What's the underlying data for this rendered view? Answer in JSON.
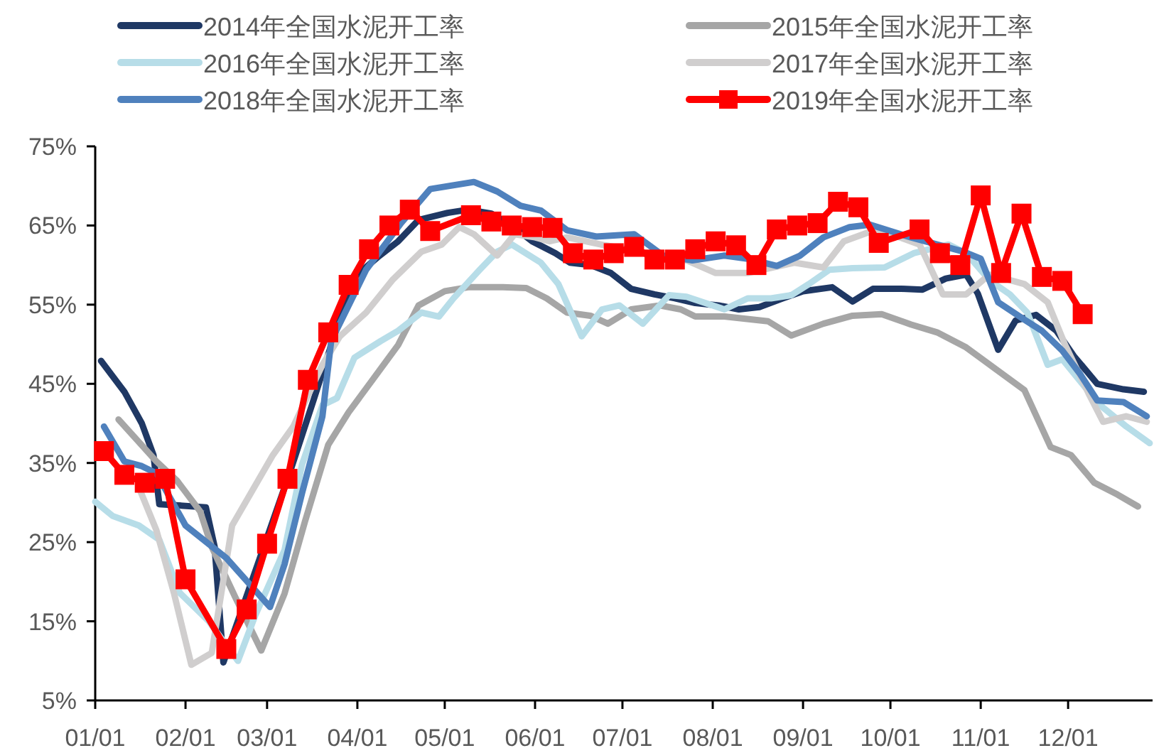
{
  "chart_data": {
    "type": "line",
    "legend": "top",
    "grid": false,
    "marker": "none",
    "line_style": "solid",
    "xlim": [
      "--01-01",
      "--12-30"
    ],
    "xticks": [
      {
        "value": "--01-01",
        "label": "01/01"
      },
      {
        "value": "--02-01",
        "label": "02/01"
      },
      {
        "value": "--03-01",
        "label": "03/01"
      },
      {
        "value": "--04-01",
        "label": "04/01"
      },
      {
        "value": "--05-01",
        "label": "05/01"
      },
      {
        "value": "--06-01",
        "label": "06/01"
      },
      {
        "value": "--07-01",
        "label": "07/01"
      },
      {
        "value": "--08-01",
        "label": "08/01"
      },
      {
        "value": "--09-01",
        "label": "09/01"
      },
      {
        "value": "--10-01",
        "label": "10/01"
      },
      {
        "value": "--11-01",
        "label": "11/01"
      },
      {
        "value": "--12-01",
        "label": "12/01"
      }
    ],
    "ylim": [
      5,
      75
    ],
    "yticks": [
      {
        "value": 5,
        "label": "5%"
      },
      {
        "value": 15,
        "label": "15%"
      },
      {
        "value": 25,
        "label": "25%"
      },
      {
        "value": 35,
        "label": "35%"
      },
      {
        "value": 45,
        "label": "45%"
      },
      {
        "value": 55,
        "label": "55%"
      },
      {
        "value": 65,
        "label": "65%"
      },
      {
        "value": 75,
        "label": "75%"
      }
    ],
    "series": [
      {
        "name": "2014年全国水泥开工率",
        "color": "#1f3864",
        "x": [
          "--01-03",
          "--01-11",
          "--01-17",
          "--01-21",
          "--01-23",
          "--02-08",
          "--02-11",
          "--02-14",
          "--03-09",
          "--03-17",
          "--03-24",
          "--03-31",
          "--04-08",
          "--04-15",
          "--04-22",
          "--05-02",
          "--05-09",
          "--05-17",
          "--05-24",
          "--05-31",
          "--06-08",
          "--06-13",
          "--06-20",
          "--06-27",
          "--07-04",
          "--07-12",
          "--07-19",
          "--07-26",
          "--08-03",
          "--08-10",
          "--08-17",
          "--08-25",
          "--09-01",
          "--09-11",
          "--09-18",
          "--09-25",
          "--10-05",
          "--10-12",
          "--10-20",
          "--10-27",
          "--10-31",
          "--11-07",
          "--11-13",
          "--11-20",
          "--11-27",
          "--12-03",
          "--12-11",
          "--12-20",
          "--12-27"
        ],
        "values": [
          47.9,
          44,
          40,
          36,
          29.8,
          29.4,
          24.4,
          9.8,
          34,
          43,
          51,
          58.5,
          61,
          63,
          65.7,
          66.6,
          67,
          66.5,
          65,
          63,
          61.5,
          60.3,
          60,
          59,
          57,
          56.3,
          55.8,
          55.2,
          54.9,
          54.4,
          54.7,
          55.8,
          56.7,
          57.2,
          55.4,
          57,
          57,
          56.9,
          58.3,
          58.8,
          56.4,
          49.3,
          53,
          53.7,
          51.7,
          48.5,
          45,
          44.3,
          44
        ]
      },
      {
        "name": "2015年全国水泥开工率",
        "color": "#a6a6a6",
        "x": [
          "--01-09",
          "--01-22",
          "--01-29",
          "--02-06",
          "--02-10",
          "--02-18",
          "--02-27",
          "--03-07",
          "--03-14",
          "--03-22",
          "--03-29",
          "--04-06",
          "--04-15",
          "--04-22",
          "--05-01",
          "--05-09",
          "--05-21",
          "--05-29",
          "--06-05",
          "--06-12",
          "--06-20",
          "--06-26",
          "--07-04",
          "--07-14",
          "--07-21",
          "--07-26",
          "--08-05",
          "--08-20",
          "--08-28",
          "--09-08",
          "--09-18",
          "--09-28",
          "--10-08",
          "--10-17",
          "--10-27",
          "--11-06",
          "--11-16",
          "--11-25",
          "--12-02",
          "--12-10",
          "--12-18",
          "--12-25"
        ],
        "values": [
          40.5,
          35.2,
          32.8,
          28.9,
          24.4,
          18.1,
          11.3,
          18.5,
          27.6,
          37.3,
          41.4,
          45.4,
          49.9,
          54.9,
          56.7,
          57.2,
          57.2,
          57.1,
          55.8,
          54,
          53.6,
          52.6,
          54.4,
          54.9,
          54.4,
          53.5,
          53.5,
          52.9,
          51.1,
          52.6,
          53.6,
          53.8,
          52.5,
          51.5,
          49.6,
          46.9,
          44.2,
          37,
          36,
          32.5,
          31,
          29.5
        ]
      },
      {
        "name": "2016年全国水泥开工率",
        "color": "#b7dde8",
        "x": [
          "--01-01",
          "--01-07",
          "--01-16",
          "--01-23",
          "--01-30",
          "--02-09",
          "--02-19",
          "--02-25",
          "--03-07",
          "--03-13",
          "--03-20",
          "--03-25",
          "--03-31",
          "--04-09",
          "--04-15",
          "--04-23",
          "--04-29",
          "--05-04",
          "--05-13",
          "--05-19",
          "--05-24",
          "--06-03",
          "--06-09",
          "--06-17",
          "--06-24",
          "--06-30",
          "--07-08",
          "--07-17",
          "--07-23",
          "--08-05",
          "--08-13",
          "--08-21",
          "--08-28",
          "--09-03",
          "--09-10",
          "--09-18",
          "--09-29",
          "--10-09",
          "--10-21",
          "--10-27",
          "--11-04",
          "--11-11",
          "--11-17",
          "--11-24",
          "--11-29",
          "--12-07",
          "--12-13",
          "--12-21",
          "--12-29"
        ],
        "values": [
          30.1,
          28.3,
          27.1,
          25.3,
          18.6,
          15,
          10,
          15.8,
          24,
          34.8,
          42.3,
          43.2,
          48.3,
          50.4,
          51.7,
          54,
          53.5,
          55.8,
          59.4,
          61.7,
          62.6,
          60.3,
          57.6,
          51,
          54.4,
          54.9,
          52.6,
          56.2,
          56,
          54.4,
          55.8,
          55.8,
          56.2,
          57.6,
          59.4,
          59.6,
          59.7,
          61.5,
          62.6,
          61.5,
          58.1,
          56.3,
          54,
          47.4,
          48.1,
          44.5,
          42,
          39.6,
          37.5
        ]
      },
      {
        "name": "2017年全国水泥开工率",
        "color": "#d0cece",
        "x": [
          "--01-16",
          "--01-22",
          "--01-28",
          "--02-03",
          "--02-10",
          "--02-17",
          "--03-03",
          "--03-10",
          "--03-20",
          "--03-26",
          "--04-04",
          "--04-13",
          "--04-23",
          "--04-30",
          "--05-06",
          "--05-11",
          "--05-19",
          "--05-25",
          "--06-01",
          "--06-06",
          "--06-12",
          "--06-25",
          "--07-07",
          "--07-23",
          "--08-02",
          "--08-13",
          "--08-29",
          "--09-08",
          "--09-15",
          "--09-24",
          "--10-02",
          "--10-11",
          "--10-19",
          "--10-27",
          "--11-04",
          "--11-16",
          "--11-24",
          "--11-30",
          "--12-08",
          "--12-13",
          "--12-21",
          "--12-28"
        ],
        "values": [
          31.9,
          26.5,
          18.6,
          9.5,
          11,
          27.1,
          36,
          39.6,
          47.4,
          51,
          54,
          58.1,
          61.7,
          62.6,
          64.8,
          63.9,
          61.2,
          63.9,
          63.5,
          63,
          63.5,
          62.5,
          61.7,
          60.6,
          59,
          59,
          60.3,
          59.7,
          63,
          64.2,
          63.8,
          62.6,
          56.3,
          56.3,
          58.8,
          57.6,
          55.3,
          49.9,
          43.8,
          40.2,
          40.9,
          40.2
        ]
      },
      {
        "name": "2018年全国水泥开工率",
        "color": "#4f81bd",
        "x": [
          "--01-04",
          "--01-11",
          "--01-17",
          "--01-22",
          "--02-01",
          "--02-15",
          "--03-02",
          "--03-07",
          "--03-13",
          "--03-20",
          "--03-23",
          "--04-04",
          "--04-16",
          "--04-26",
          "--05-11",
          "--05-19",
          "--05-27",
          "--06-03",
          "--06-12",
          "--06-22",
          "--07-05",
          "--07-15",
          "--07-25",
          "--08-05",
          "--08-13",
          "--08-23",
          "--08-31",
          "--09-08",
          "--09-17",
          "--09-24",
          "--10-08",
          "--10-17",
          "--10-26",
          "--11-01",
          "--11-07",
          "--11-16",
          "--11-22",
          "--11-29",
          "--12-05",
          "--12-11",
          "--12-20",
          "--12-28"
        ],
        "values": [
          39.6,
          35.2,
          34.6,
          33.7,
          27.1,
          23,
          16.8,
          22.2,
          31.2,
          40.9,
          50.4,
          59.4,
          65.3,
          69.6,
          70.5,
          69.3,
          67.5,
          66.9,
          64.4,
          63.6,
          63.9,
          61.2,
          60.6,
          61.2,
          60.8,
          59.9,
          61.2,
          63.5,
          64.8,
          65.1,
          63.5,
          62.6,
          61.7,
          60.8,
          55.3,
          53.1,
          51.7,
          49.2,
          46.3,
          42.9,
          42.7,
          40.9
        ]
      },
      {
        "name": "2019年全国水泥开工率",
        "color": "#ff0000",
        "marker": "square",
        "x": [
          "--01-04",
          "--01-11",
          "--01-18",
          "--01-25",
          "--02-01",
          "--02-15",
          "--02-22",
          "--03-01",
          "--03-08",
          "--03-15",
          "--03-22",
          "--03-29",
          "--04-05",
          "--04-12",
          "--04-19",
          "--04-26",
          "--05-10",
          "--05-17",
          "--05-24",
          "--05-31",
          "--06-07",
          "--06-14",
          "--06-21",
          "--06-28",
          "--07-05",
          "--07-12",
          "--07-19",
          "--07-26",
          "--08-02",
          "--08-09",
          "--08-16",
          "--08-23",
          "--08-30",
          "--09-06",
          "--09-13",
          "--09-20",
          "--09-27",
          "--10-11",
          "--10-18",
          "--10-25",
          "--11-01",
          "--11-08",
          "--11-15",
          "--11-22",
          "--11-29",
          "--12-06"
        ],
        "values": [
          36.5,
          33.5,
          32.5,
          33,
          20.3,
          11.5,
          16.5,
          24.8,
          33,
          45.5,
          51.5,
          57.5,
          62,
          65,
          67,
          64.3,
          66.3,
          65.5,
          65,
          64.8,
          64.7,
          61.5,
          60.7,
          61.5,
          62.3,
          60.7,
          60.7,
          62,
          63,
          62.5,
          60,
          64.5,
          65,
          65.3,
          68,
          67.3,
          62.8,
          64.5,
          61.5,
          60,
          68.8,
          59,
          66.5,
          58.5,
          58,
          53.8
        ]
      }
    ]
  }
}
